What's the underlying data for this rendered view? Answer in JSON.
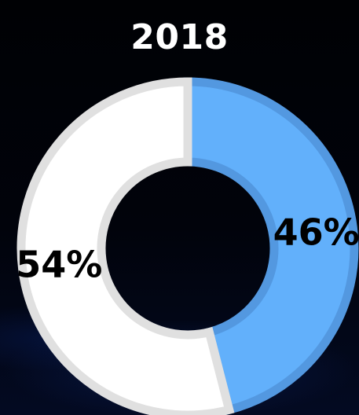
{
  "chart_data": {
    "type": "pie",
    "title": "2018",
    "categories": [
      "",
      ""
    ],
    "values": [
      46,
      54
    ],
    "labels": [
      "46%",
      "54%"
    ],
    "colors": [
      "#62b0fb",
      "#ffffff"
    ],
    "stroke_colors": [
      "#5398e0",
      "#e0e0e0"
    ],
    "hole": "donut"
  }
}
